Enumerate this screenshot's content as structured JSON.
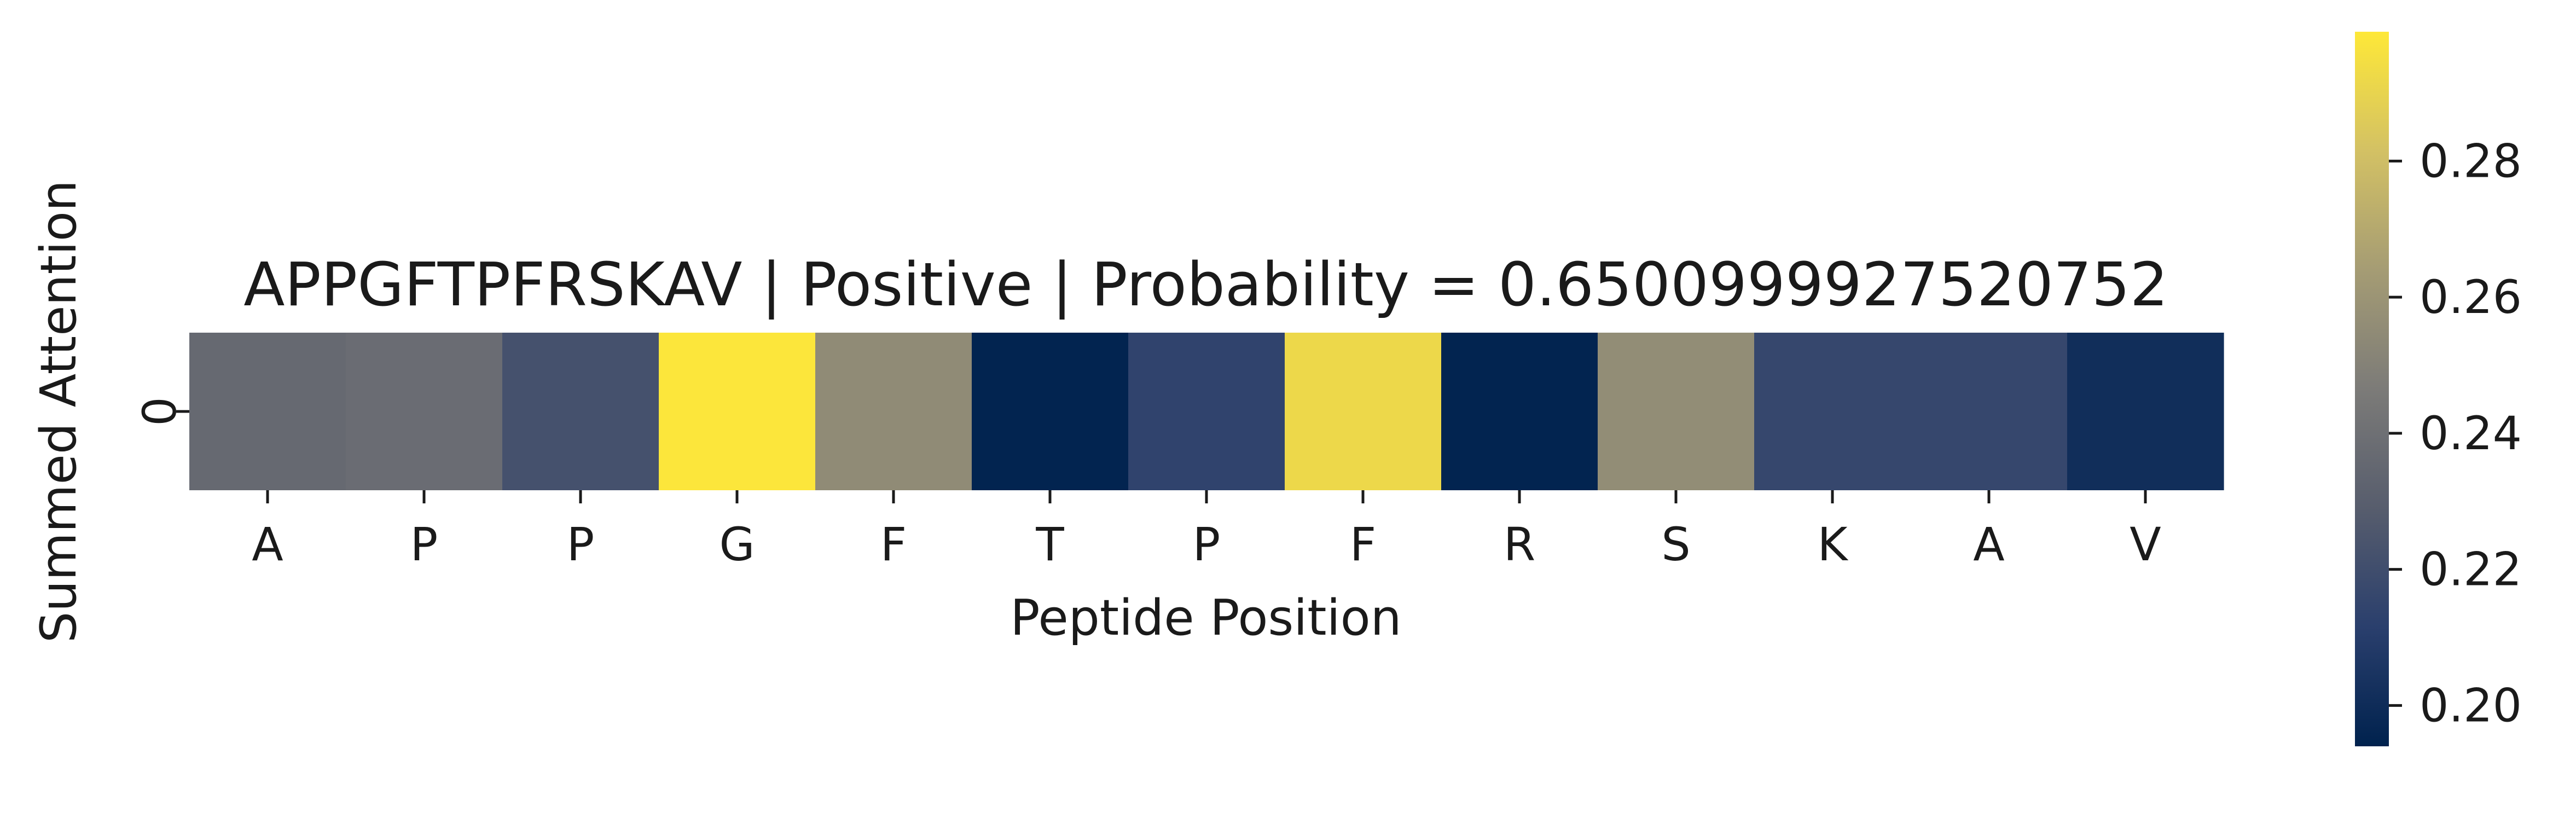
{
  "chart_data": {
    "type": "heatmap",
    "title": "APPGFTPFRSKAV | Positive | Probability = 0.6500999927520752",
    "xlabel": "Peptide Position",
    "ylabel": "Summed Attention",
    "x_categories": [
      "A",
      "P",
      "P",
      "G",
      "F",
      "T",
      "P",
      "F",
      "R",
      "S",
      "K",
      "A",
      "V"
    ],
    "y_categories": [
      "0"
    ],
    "values": [
      [
        0.236,
        0.238,
        0.222,
        0.298,
        0.255,
        0.195,
        0.214,
        0.292,
        0.195,
        0.256,
        0.216,
        0.216,
        0.201
      ]
    ],
    "colormap": "cividis",
    "colorbar": {
      "vmin": 0.194,
      "vmax": 0.299,
      "ticks": [
        0.2,
        0.22,
        0.24,
        0.26,
        0.28
      ],
      "tick_labels": [
        "0.20",
        "0.22",
        "0.24",
        "0.26",
        "0.28"
      ],
      "colors": [
        "#00224e",
        "#2a3f6d",
        "#575d6d",
        "#7c7b78",
        "#a59c74",
        "#d3c164",
        "#fee838"
      ]
    }
  }
}
